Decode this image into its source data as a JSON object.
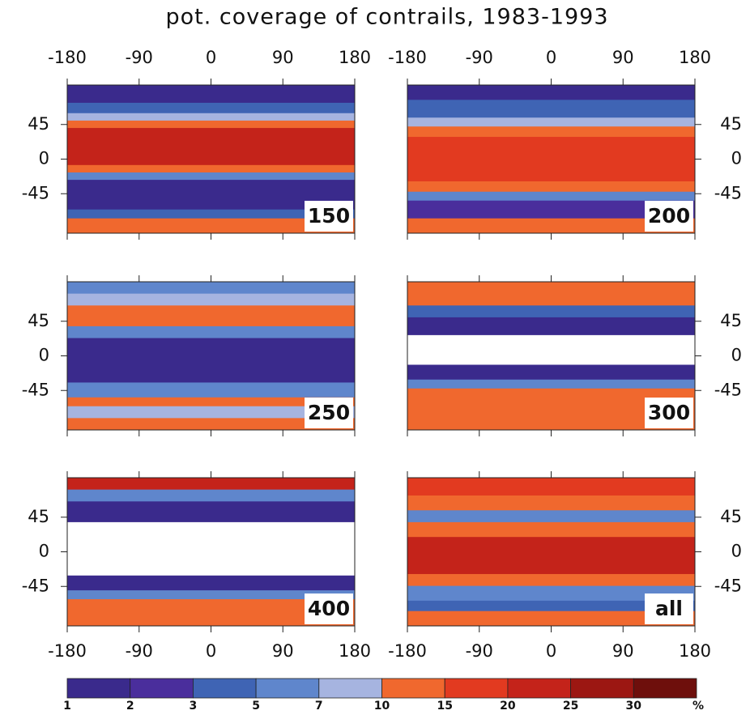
{
  "title": "pot. coverage of contrails, 1983-1993",
  "lon_range": [
    -180,
    180
  ],
  "lat_range": [
    -90,
    90
  ],
  "xticks": [
    -180,
    -90,
    0,
    90,
    180
  ],
  "yticks": [
    45,
    0,
    -45
  ],
  "panels": [
    {
      "label": "150"
    },
    {
      "label": "200"
    },
    {
      "label": "250"
    },
    {
      "label": "300"
    },
    {
      "label": "400"
    },
    {
      "label": "all"
    }
  ],
  "colorbar": {
    "levels": [
      1,
      2,
      3,
      5,
      7,
      10,
      15,
      20,
      25,
      30
    ],
    "unit": "%",
    "colors": [
      "#3a2a8c",
      "#4a2e9c",
      "#3f64b4",
      "#5f86cc",
      "#a6b4e0",
      "#f0682e",
      "#e23a20",
      "#c4231a",
      "#9c1712",
      "#6e0f0c"
    ]
  }
}
